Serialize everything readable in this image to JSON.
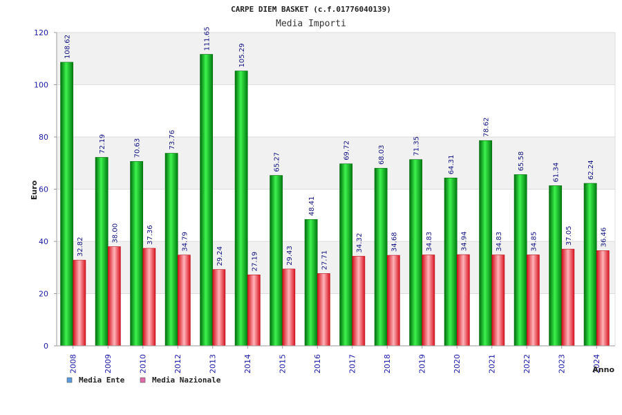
{
  "chart_data": {
    "type": "bar",
    "title": "CARPE DIEM BASKET (c.f.01776040139)",
    "subtitle": "Media Importi",
    "xlabel": "Anno",
    "ylabel": "Euro",
    "ylim": [
      0,
      120
    ],
    "yticks": [
      0,
      20,
      40,
      60,
      80,
      100,
      120
    ],
    "grid": true,
    "legend_position": "bottom-left",
    "categories": [
      "2008",
      "2009",
      "2010",
      "2012",
      "2013",
      "2014",
      "2015",
      "2016",
      "2017",
      "2018",
      "2019",
      "2020",
      "2021",
      "2022",
      "2023",
      "2024"
    ],
    "value_labels": {
      "ente": [
        "108.62",
        "72.19",
        "70.63",
        "73.76",
        "111.65",
        "105.29",
        "65.27",
        "48.41",
        "69.72",
        "68.03",
        "71.35",
        "64.31",
        "78.62",
        "65.58",
        "61.34",
        "62.24"
      ],
      "nazionale": [
        "32.82",
        "38.00",
        "37.36",
        "34.79",
        "29.24",
        "27.19",
        "29.43",
        "27.71",
        "34.32",
        "34.68",
        "34.83",
        "34.94",
        "34.83",
        "34.85",
        "37.05",
        "36.46"
      ]
    },
    "series": [
      {
        "name": "Media Ente",
        "key": "ente",
        "legend_color": "#5a9be0",
        "bar_color": "#0aa51a",
        "values": [
          108.62,
          72.19,
          70.63,
          73.76,
          111.65,
          105.29,
          65.27,
          48.41,
          69.72,
          68.03,
          71.35,
          64.31,
          78.62,
          65.58,
          61.34,
          62.24
        ]
      },
      {
        "name": "Media Nazionale",
        "key": "nazionale",
        "legend_color": "#e06aa8",
        "bar_color": "#e5323c",
        "values": [
          32.82,
          38.0,
          37.36,
          34.79,
          29.24,
          27.19,
          29.43,
          27.71,
          34.32,
          34.68,
          34.83,
          34.94,
          34.83,
          34.85,
          37.05,
          36.46
        ]
      }
    ]
  }
}
